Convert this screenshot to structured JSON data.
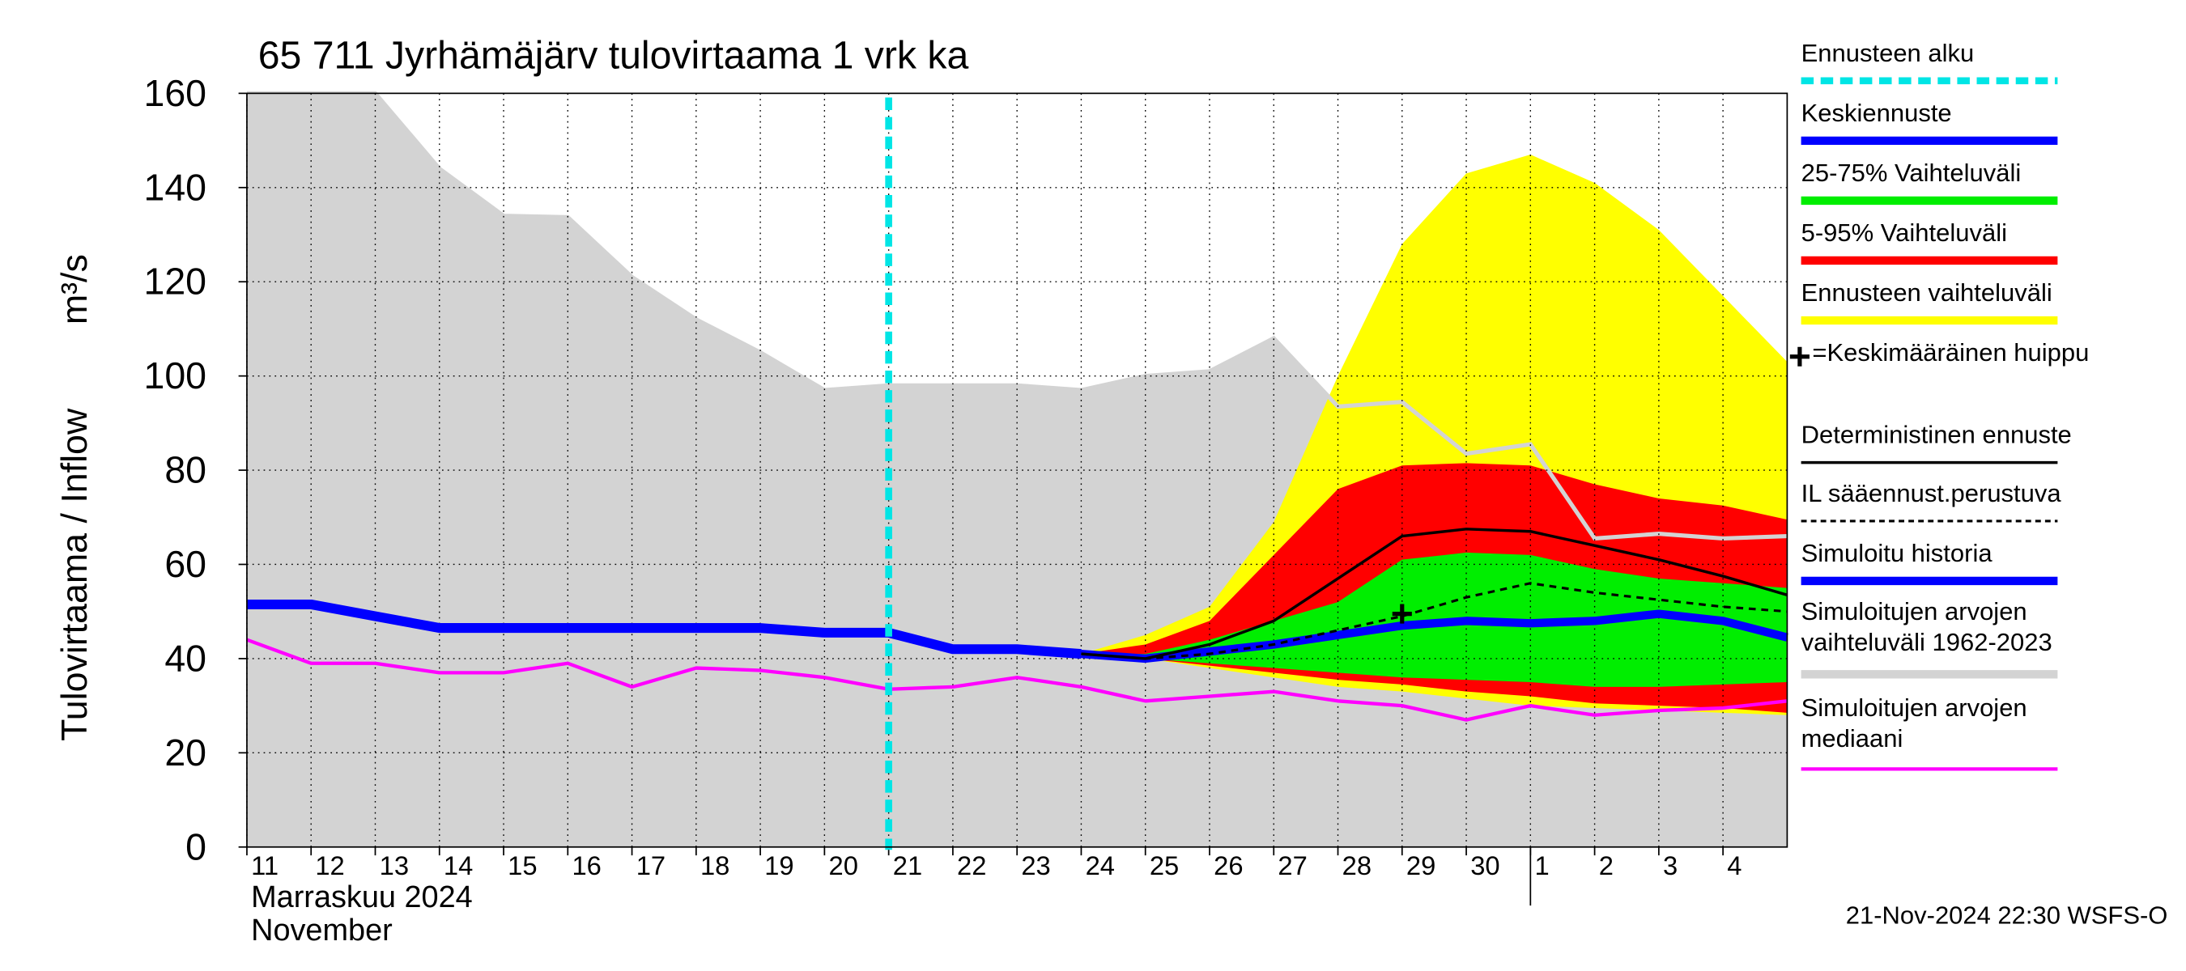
{
  "chart_data": {
    "type": "line",
    "title": "65 711 Jyrhämäjärv tulovirtaama 1 vrk ka",
    "y_label": "Tulovirtaama / Inflow",
    "y_unit": "m³/s",
    "x_label": [
      "Marraskuu 2024",
      "November"
    ],
    "footer": "21-Nov-2024 22:30 WSFS-O",
    "x": [
      0,
      1,
      2,
      3,
      4,
      5,
      6,
      7,
      8,
      9,
      10,
      11,
      12,
      13,
      14,
      15,
      16,
      17,
      18,
      19,
      20,
      21,
      22,
      23,
      24
    ],
    "xlim": [
      0,
      24
    ],
    "xticks": [
      {
        "value": 0,
        "label": "11"
      },
      {
        "value": 1,
        "label": "12"
      },
      {
        "value": 2,
        "label": "13"
      },
      {
        "value": 3,
        "label": "14"
      },
      {
        "value": 4,
        "label": "15"
      },
      {
        "value": 5,
        "label": "16"
      },
      {
        "value": 6,
        "label": "17"
      },
      {
        "value": 7,
        "label": "18"
      },
      {
        "value": 8,
        "label": "19"
      },
      {
        "value": 9,
        "label": "20"
      },
      {
        "value": 10,
        "label": "21"
      },
      {
        "value": 11,
        "label": "22"
      },
      {
        "value": 12,
        "label": "23"
      },
      {
        "value": 13,
        "label": "24"
      },
      {
        "value": 14,
        "label": "25"
      },
      {
        "value": 15,
        "label": "26"
      },
      {
        "value": 16,
        "label": "27"
      },
      {
        "value": 17,
        "label": "28"
      },
      {
        "value": 18,
        "label": "29"
      },
      {
        "value": 19,
        "label": "30"
      },
      {
        "value": 20,
        "label": "1"
      },
      {
        "value": 21,
        "label": "2"
      },
      {
        "value": 22,
        "label": "3"
      },
      {
        "value": 23,
        "label": "4"
      }
    ],
    "month_start": 20,
    "ylim": [
      0,
      160
    ],
    "yticks": [
      0,
      20,
      40,
      60,
      80,
      100,
      120,
      140,
      160
    ],
    "grid": true,
    "forecast_start": {
      "name": "Ennusteen alku",
      "x": 10,
      "color": "#00e5e5"
    },
    "bands": [
      {
        "name": "Simuloitujen arvojen vaihteluväli 1962-2023",
        "color": "#d3d3d3",
        "high": [
          160,
          160,
          160,
          144,
          134,
          133.7,
          121,
          112,
          105,
          97,
          98,
          98,
          98,
          97,
          100,
          101,
          108,
          93.5,
          94.5,
          83.5,
          85.5,
          65.5,
          66.5,
          65.5,
          66
        ],
        "low": [
          0,
          0,
          0,
          0,
          0,
          0,
          0,
          0,
          0,
          0,
          0,
          0,
          0,
          0,
          0,
          0,
          0,
          0,
          0,
          0,
          0,
          0,
          0,
          0,
          0
        ]
      },
      {
        "name": "Ennusteen vaihteluväli",
        "color": "#ffff00",
        "high": [
          null,
          null,
          null,
          null,
          null,
          null,
          null,
          null,
          null,
          null,
          null,
          null,
          null,
          41,
          45,
          51,
          69,
          100,
          128,
          143,
          147,
          141,
          131,
          117,
          103
        ],
        "low": [
          null,
          null,
          null,
          null,
          null,
          null,
          null,
          null,
          null,
          null,
          null,
          null,
          null,
          41,
          40,
          38,
          36,
          34,
          33,
          31.5,
          30,
          29.5,
          29,
          28.5,
          28
        ]
      },
      {
        "name": "5-95% Vaihteluväli",
        "color": "#ff0000",
        "high": [
          null,
          null,
          null,
          null,
          null,
          null,
          null,
          null,
          null,
          null,
          null,
          null,
          null,
          41,
          43,
          48,
          62,
          76,
          81,
          81.5,
          81,
          77,
          74,
          72.5,
          69.5
        ],
        "low": [
          null,
          null,
          null,
          null,
          null,
          null,
          null,
          null,
          null,
          null,
          null,
          null,
          null,
          41,
          40,
          38.5,
          37,
          35.5,
          34.5,
          33,
          32,
          30.5,
          30,
          29.5,
          28.5
        ]
      },
      {
        "name": "25-75% Vaihteluväli",
        "color": "#00ee00",
        "high": [
          null,
          null,
          null,
          null,
          null,
          null,
          null,
          null,
          null,
          null,
          null,
          null,
          null,
          41,
          41,
          44,
          48,
          52,
          61,
          62.5,
          62,
          59,
          57,
          56,
          55
        ],
        "low": [
          null,
          null,
          null,
          null,
          null,
          null,
          null,
          null,
          null,
          null,
          null,
          null,
          null,
          41,
          40,
          39,
          38,
          37,
          36,
          35.5,
          35,
          34,
          34,
          34.5,
          35
        ]
      }
    ],
    "series": [
      {
        "name": "Simuloitujen arvojen mediaani",
        "color": "#ff00ff",
        "width": 2.5,
        "dash": false,
        "values": [
          44,
          39,
          39,
          37,
          37,
          39,
          34,
          38,
          37.5,
          36,
          33.5,
          34,
          36,
          34,
          31,
          32,
          33,
          31,
          30,
          27,
          30,
          28,
          29,
          29.5,
          31
        ]
      },
      {
        "name": "Simuloitu historia",
        "color": "#0000ff",
        "width": 7,
        "dash": false,
        "values": [
          51.5,
          51.5,
          49,
          46.5,
          46.5,
          46.5,
          46.5,
          46.5,
          46.5,
          45.5,
          45.5,
          42,
          42,
          41,
          null,
          null,
          null,
          null,
          null,
          null,
          null,
          null,
          null,
          null,
          null
        ]
      },
      {
        "name": "Keskiennuste",
        "color": "#0000ff",
        "width": 6,
        "dash": false,
        "values": [
          null,
          null,
          null,
          null,
          null,
          null,
          null,
          null,
          null,
          null,
          null,
          null,
          null,
          41,
          40,
          41.5,
          43,
          45,
          47,
          48,
          47.5,
          48,
          49.5,
          48,
          44.5
        ]
      },
      {
        "name": "Deterministinen ennuste",
        "color": "#000000",
        "width": 2,
        "dash": false,
        "values": [
          null,
          null,
          null,
          null,
          null,
          null,
          null,
          null,
          null,
          null,
          null,
          null,
          null,
          41,
          40,
          43,
          48,
          57,
          66,
          67.5,
          67,
          64,
          61,
          57.5,
          53.5
        ]
      },
      {
        "name": "IL sääennust.perustuva",
        "color": "#000000",
        "width": 1.8,
        "dash": true,
        "values": [
          null,
          null,
          null,
          null,
          null,
          null,
          null,
          null,
          null,
          null,
          null,
          null,
          null,
          41,
          40,
          41,
          43,
          46,
          49,
          53,
          56,
          54,
          52.5,
          51,
          50
        ]
      }
    ],
    "peak": {
      "name": "=Keskimääräinen huippu",
      "x": 18,
      "y": 49.5
    }
  }
}
